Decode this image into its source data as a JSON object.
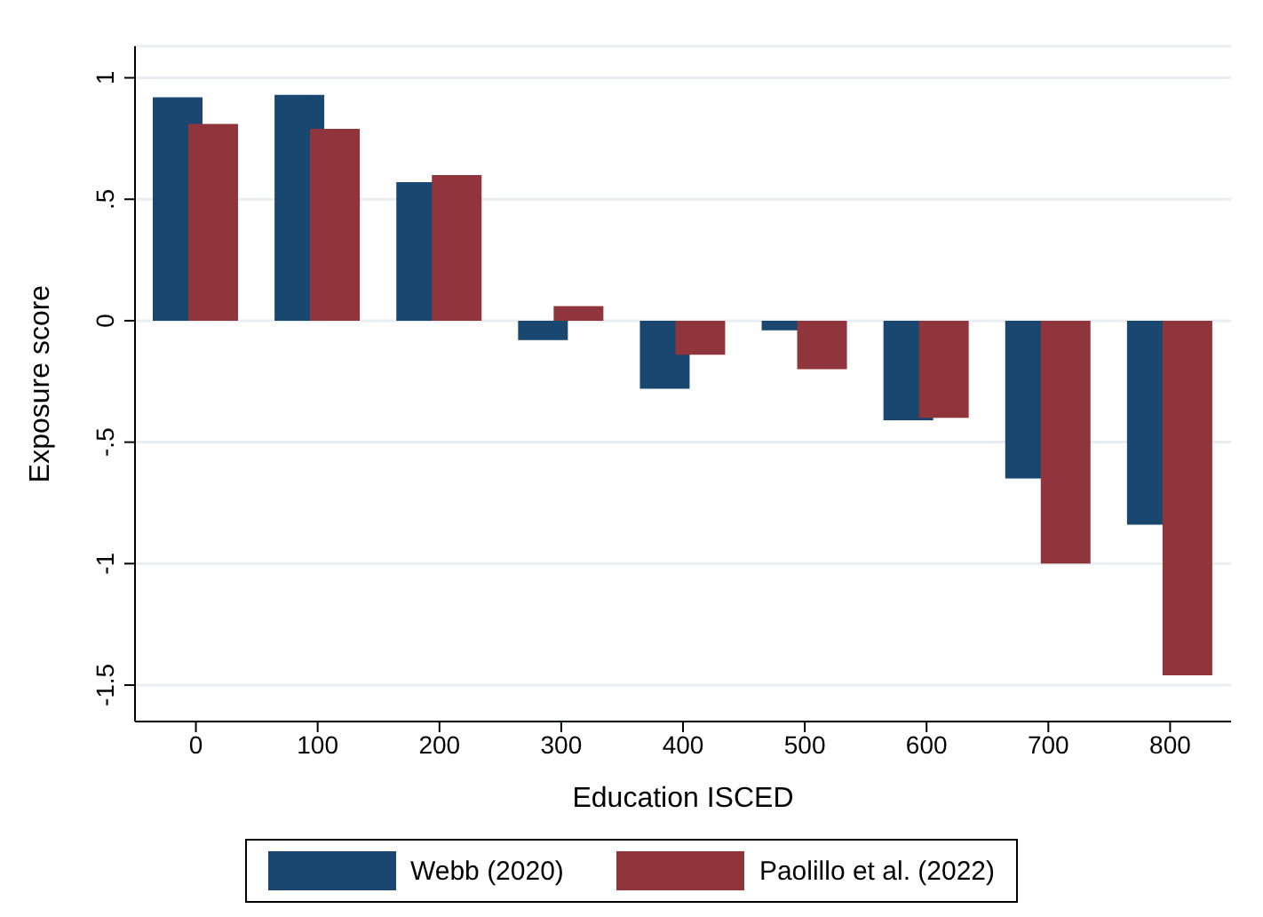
{
  "chart_data": {
    "type": "bar",
    "xlabel": "Education ISCED",
    "ylabel": "Exposure score",
    "categories": [
      "0",
      "100",
      "200",
      "300",
      "400",
      "500",
      "600",
      "700",
      "800"
    ],
    "series": [
      {
        "name": "Webb (2020)",
        "color": "#1a476f",
        "values": [
          0.92,
          0.93,
          0.57,
          -0.08,
          -0.28,
          -0.04,
          -0.41,
          -0.65,
          -0.84
        ]
      },
      {
        "name": "Paolillo et al. (2022)",
        "color": "#90353b",
        "values": [
          0.81,
          0.79,
          0.6,
          0.06,
          -0.14,
          -0.2,
          -0.4,
          -1.0,
          -1.46
        ]
      }
    ],
    "ylim": [
      -1.65,
      1.13
    ],
    "yticks": [
      {
        "value": -1.5,
        "label": "-1.5"
      },
      {
        "value": -1,
        "label": "-1"
      },
      {
        "value": -0.5,
        "label": "-.5"
      },
      {
        "value": 0,
        "label": "0"
      },
      {
        "value": 0.5,
        "label": ".5"
      },
      {
        "value": 1,
        "label": "1"
      }
    ],
    "grid": "y",
    "legend": "bottom"
  }
}
